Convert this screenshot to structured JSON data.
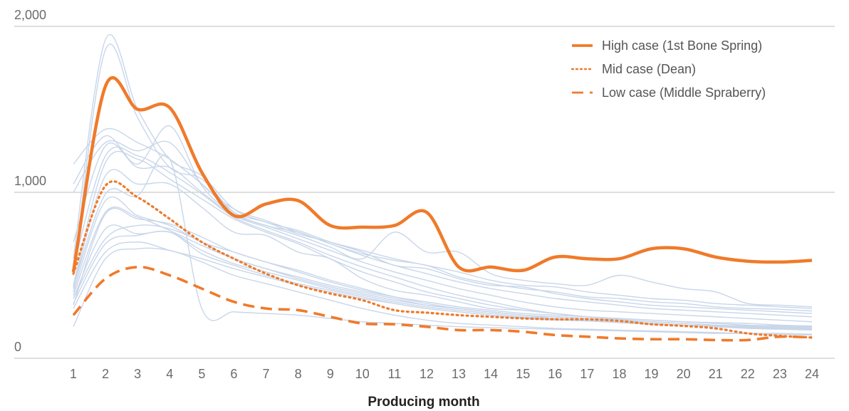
{
  "chart_data": {
    "type": "line",
    "xlabel": "Producing month",
    "ylabel": "",
    "x": [
      1,
      2,
      3,
      4,
      5,
      6,
      7,
      8,
      9,
      10,
      11,
      12,
      13,
      14,
      15,
      16,
      17,
      18,
      19,
      20,
      21,
      22,
      23,
      24
    ],
    "xlim": [
      1,
      24
    ],
    "ylim": [
      0,
      2000
    ],
    "y_ticks": [
      0,
      1000,
      2000
    ],
    "y_tick_labels": [
      "0",
      "1,000",
      "2,000"
    ],
    "grid": "horizontal",
    "legend_position": "top-right",
    "colors": {
      "highlight": "#f07a2a",
      "background": "#c8d6ea",
      "grid": "#bdbdbd"
    },
    "series": [
      {
        "name": "High case (1st Bone Spring)",
        "style": "solid",
        "values": [
          520,
          1640,
          1500,
          1510,
          1120,
          860,
          930,
          950,
          800,
          790,
          800,
          880,
          550,
          550,
          530,
          610,
          600,
          600,
          660,
          660,
          610,
          585,
          580,
          590
        ]
      },
      {
        "name": "Mid case (Dean)",
        "style": "dotted",
        "values": [
          510,
          1040,
          970,
          840,
          700,
          600,
          510,
          440,
          390,
          350,
          290,
          275,
          260,
          250,
          240,
          235,
          235,
          225,
          205,
          195,
          180,
          150,
          135,
          125
        ]
      },
      {
        "name": "Low case (Middle Spraberry)",
        "style": "dashed",
        "values": [
          260,
          480,
          550,
          500,
          420,
          340,
          300,
          290,
          250,
          210,
          205,
          190,
          170,
          170,
          160,
          140,
          130,
          120,
          115,
          115,
          110,
          110,
          130,
          125
        ]
      }
    ],
    "background_series": [
      {
        "values": [
          600,
          1920,
          1500,
          1200,
          1100,
          900,
          820,
          770,
          700,
          640,
          560,
          540,
          480,
          440,
          430,
          390,
          360,
          340,
          320,
          310,
          300,
          290,
          280,
          270
        ]
      },
      {
        "values": [
          500,
          1860,
          1450,
          1150,
          1080,
          880,
          800,
          760,
          690,
          630,
          590,
          560,
          490,
          450,
          420,
          400,
          370,
          360,
          340,
          330,
          310,
          300,
          295,
          285
        ]
      },
      {
        "values": [
          1170,
          1380,
          1300,
          1200,
          1050,
          880,
          820,
          750,
          700,
          650,
          600,
          560,
          520,
          470,
          440,
          430,
          400,
          380,
          360,
          350,
          330,
          320,
          310,
          300
        ]
      },
      {
        "values": [
          1050,
          1340,
          1170,
          1400,
          1040,
          870,
          800,
          740,
          670,
          600,
          760,
          640,
          640,
          510,
          470,
          450,
          440,
          500,
          460,
          420,
          400,
          330,
          320,
          310
        ]
      },
      {
        "values": [
          700,
          1280,
          1150,
          1150,
          1000,
          860,
          790,
          720,
          650,
          580,
          520,
          470,
          420,
          380,
          340,
          310,
          290,
          280,
          270,
          260,
          250,
          240,
          230,
          220
        ]
      },
      {
        "values": [
          550,
          1220,
          1220,
          1120,
          990,
          850,
          770,
          700,
          620,
          550,
          490,
          430,
          380,
          340,
          300,
          270,
          250,
          230,
          210,
          200,
          190,
          180,
          175,
          170
        ]
      },
      {
        "values": [
          440,
          1180,
          1200,
          1080,
          960,
          840,
          760,
          690,
          600,
          520,
          460,
          400,
          360,
          320,
          290,
          270,
          250,
          240,
          230,
          220,
          210,
          200,
          195,
          190
        ]
      },
      {
        "values": [
          420,
          1100,
          1050,
          1050,
          910,
          760,
          740,
          640,
          600,
          480,
          410,
          380,
          340,
          300,
          290,
          270,
          250,
          235,
          220,
          210,
          200,
          190,
          180,
          175
        ]
      },
      {
        "values": [
          400,
          950,
          860,
          800,
          700,
          640,
          580,
          530,
          470,
          420,
          370,
          330,
          300,
          280,
          260,
          250,
          240,
          220,
          210,
          200,
          190,
          185,
          180,
          175
        ]
      },
      {
        "values": [
          380,
          880,
          850,
          770,
          680,
          600,
          540,
          490,
          440,
          400,
          360,
          320,
          300,
          280,
          260,
          240,
          230,
          220,
          210,
          200,
          195,
          190,
          185,
          180
        ]
      },
      {
        "values": [
          360,
          780,
          750,
          760,
          650,
          570,
          520,
          470,
          420,
          380,
          340,
          310,
          290,
          270,
          250,
          240,
          230,
          220,
          210,
          200,
          190,
          185,
          180,
          175
        ]
      },
      {
        "values": [
          330,
          690,
          740,
          760,
          630,
          560,
          500,
          450,
          410,
          370,
          330,
          300,
          280,
          260,
          240,
          230,
          225,
          215,
          205,
          200,
          190,
          185,
          180,
          175
        ]
      },
      {
        "values": [
          300,
          640,
          700,
          650,
          600,
          540,
          490,
          440,
          400,
          360,
          330,
          300,
          280,
          260,
          245,
          235,
          225,
          215,
          205,
          200,
          195,
          185,
          180,
          175
        ]
      },
      {
        "values": [
          190,
          600,
          660,
          650,
          580,
          500,
          450,
          400,
          350,
          300,
          260,
          230,
          210,
          200,
          190,
          180,
          175,
          170,
          165,
          160,
          155,
          150,
          150,
          145
        ]
      },
      {
        "values": [
          360,
          720,
          800,
          780,
          700,
          600,
          540,
          480,
          430,
          390,
          350,
          320,
          300,
          280,
          260,
          250,
          240,
          230,
          220,
          210,
          200,
          195,
          190,
          185
        ]
      },
      {
        "values": [
          430,
          990,
          980,
          1200,
          300,
          280,
          270,
          260,
          240,
          220,
          210,
          200,
          190,
          185,
          180,
          175,
          170,
          165,
          160,
          155,
          150,
          150,
          145,
          140
        ]
      },
      {
        "values": [
          1000,
          1300,
          1250,
          1300,
          1050,
          900,
          830,
          760,
          690,
          620,
          560,
          510,
          460,
          420,
          390,
          360,
          340,
          320,
          300,
          290,
          280,
          270,
          260,
          250
        ]
      },
      {
        "values": [
          320,
          870,
          840,
          810,
          730,
          640,
          580,
          520,
          460,
          410,
          370,
          340,
          310,
          290,
          270,
          260,
          250,
          240,
          230,
          220,
          215,
          210,
          200,
          195
        ]
      }
    ]
  }
}
